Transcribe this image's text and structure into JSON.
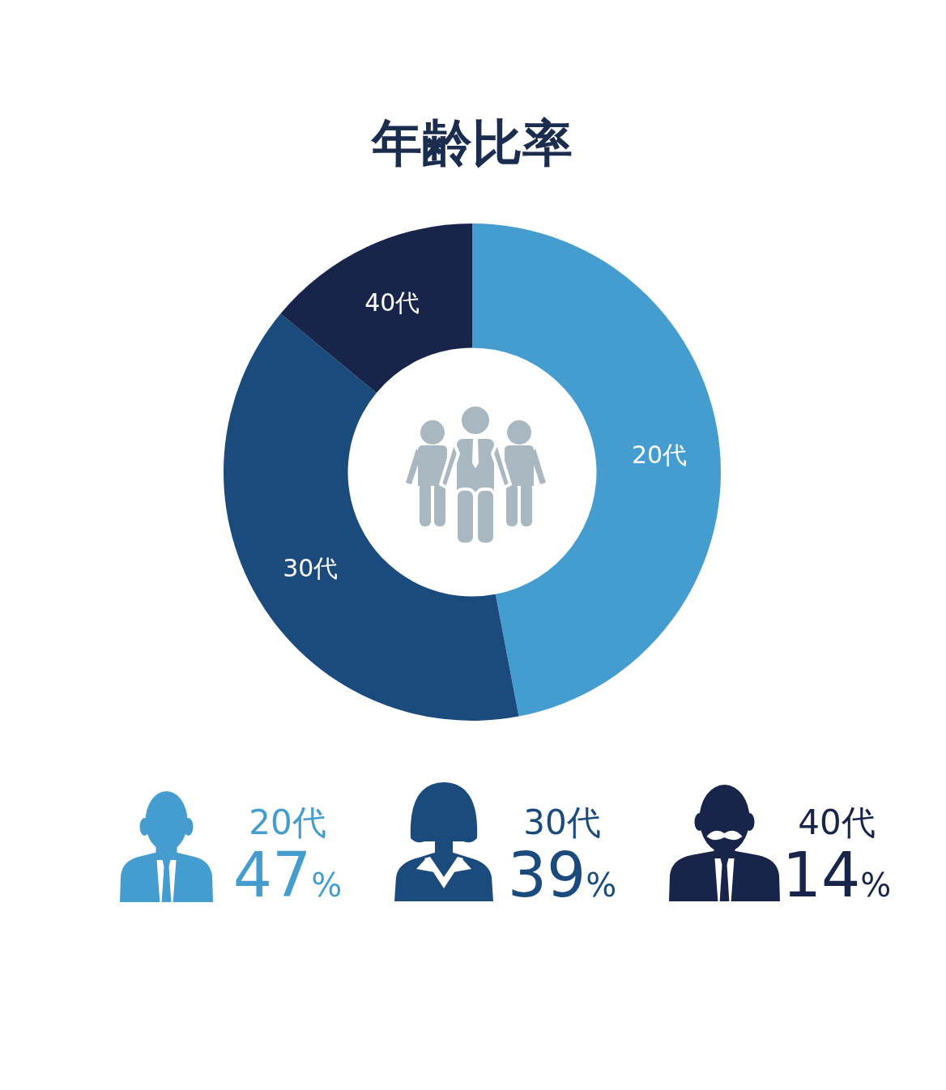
{
  "chart_data": {
    "type": "donut",
    "title": "年齢比率",
    "categories": [
      "20代",
      "30代",
      "40代"
    ],
    "values": [
      47,
      39,
      14
    ],
    "colors": [
      "#459dcf",
      "#1b4b7c",
      "#18244a"
    ],
    "value_labels": [
      "47%",
      "39%",
      "14%"
    ],
    "legend": "bottom"
  }
}
